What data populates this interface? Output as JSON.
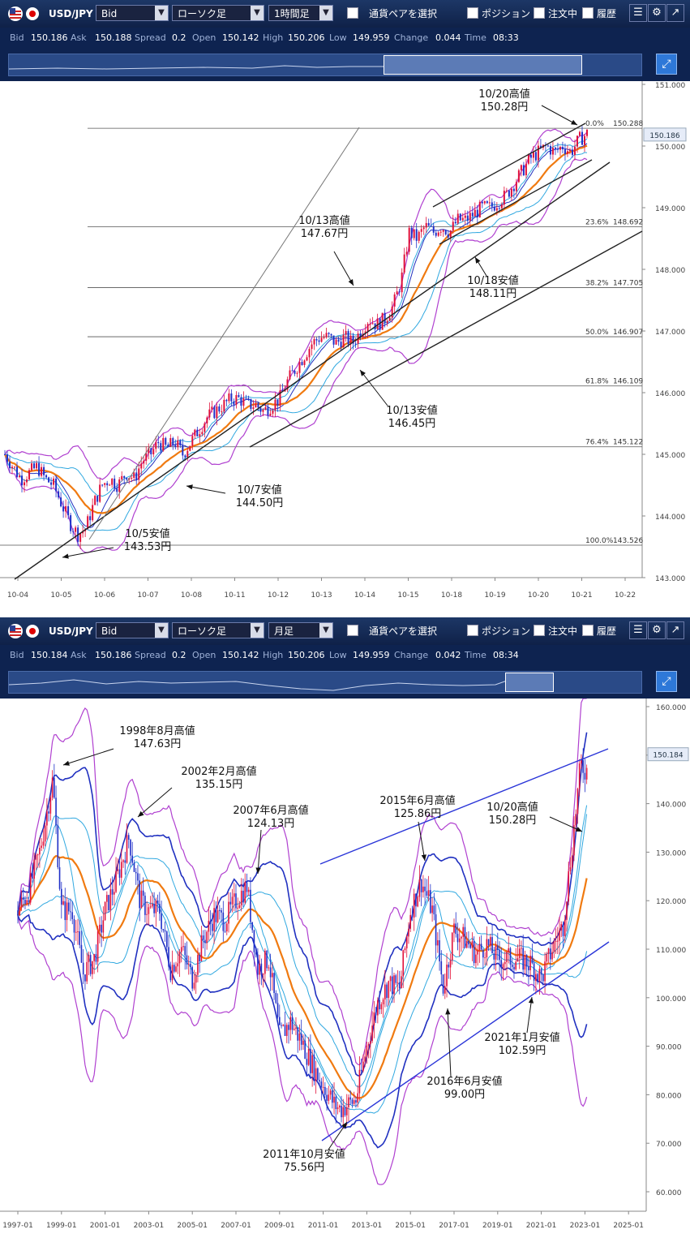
{
  "panels": [
    {
      "toolbar": {
        "flag_icon": "us-flag-icon",
        "pair": "USD/JPY",
        "price_type": "Bid",
        "chart_type": "ローソク足",
        "timeframe": "1時間足",
        "select_pair": "通貨ペアを選択",
        "position": "ポジション",
        "orders": "注文中",
        "history": "履歴"
      },
      "ticker": {
        "bid_label": "Bid",
        "bid": "150.186",
        "ask_label": "Ask",
        "ask": "150.188",
        "spread_label": "Spread",
        "spread": "0.2",
        "open_label": "Open",
        "open": "150.142",
        "high_label": "High",
        "high": "150.206",
        "low_label": "Low",
        "low": "149.959",
        "change_label": "Change",
        "change": "0.044",
        "time_label": "Time",
        "time": "08:33"
      },
      "chart_data": {
        "type": "candlestick",
        "x_labels": [
          "10-04",
          "10-05",
          "10-06",
          "10-07",
          "10-08",
          "10-11",
          "10-12",
          "10-13",
          "10-14",
          "10-15",
          "10-18",
          "10-19",
          "10-20",
          "10-21",
          "10-22"
        ],
        "y_ticks": [
          "151.000",
          "150.000",
          "149.000",
          "148.000",
          "147.000",
          "146.000",
          "145.000",
          "144.000",
          "143.000"
        ],
        "ylim": [
          143.0,
          151.0
        ],
        "current_price": "150.186",
        "approx_close_path": [
          [
            0,
            145.0
          ],
          [
            10,
            144.8
          ],
          [
            20,
            144.6
          ],
          [
            30,
            144.7
          ],
          [
            40,
            144.8
          ],
          [
            50,
            144.6
          ],
          [
            60,
            144.5
          ],
          [
            70,
            144.2
          ],
          [
            80,
            143.9
          ],
          [
            90,
            143.7
          ],
          [
            100,
            143.8
          ],
          [
            110,
            144.2
          ],
          [
            120,
            144.5
          ],
          [
            130,
            144.6
          ],
          [
            140,
            144.5
          ],
          [
            150,
            144.7
          ],
          [
            160,
            144.6
          ],
          [
            170,
            144.9
          ],
          [
            180,
            145.0
          ],
          [
            190,
            145.2
          ],
          [
            200,
            145.1
          ],
          [
            210,
            145.2
          ],
          [
            220,
            145.0
          ],
          [
            230,
            145.2
          ],
          [
            240,
            145.4
          ],
          [
            250,
            145.6
          ],
          [
            260,
            145.7
          ],
          [
            270,
            145.8
          ],
          [
            280,
            145.9
          ],
          [
            290,
            145.9
          ],
          [
            300,
            145.8
          ],
          [
            310,
            145.8
          ],
          [
            320,
            145.7
          ],
          [
            330,
            145.8
          ],
          [
            340,
            145.9
          ],
          [
            350,
            146.2
          ],
          [
            360,
            146.4
          ],
          [
            370,
            146.6
          ],
          [
            380,
            146.8
          ],
          [
            390,
            146.9
          ],
          [
            400,
            146.9
          ],
          [
            410,
            146.8
          ],
          [
            420,
            146.9
          ],
          [
            430,
            146.8
          ],
          [
            440,
            147.0
          ],
          [
            450,
            147.2
          ],
          [
            460,
            147.1
          ],
          [
            470,
            147.2
          ],
          [
            480,
            147.4
          ],
          [
            490,
            147.8
          ],
          [
            500,
            148.6
          ],
          [
            510,
            148.5
          ],
          [
            520,
            148.7
          ],
          [
            530,
            148.6
          ],
          [
            540,
            148.7
          ],
          [
            550,
            148.6
          ],
          [
            560,
            148.8
          ],
          [
            570,
            148.8
          ],
          [
            580,
            148.9
          ],
          [
            590,
            149.0
          ],
          [
            600,
            149.0
          ],
          [
            610,
            149.1
          ],
          [
            620,
            149.2
          ],
          [
            630,
            149.4
          ],
          [
            640,
            149.6
          ],
          [
            650,
            149.8
          ],
          [
            660,
            149.9
          ],
          [
            670,
            150.0
          ],
          [
            680,
            149.9
          ],
          [
            690,
            150.0
          ],
          [
            700,
            149.9
          ],
          [
            710,
            150.1
          ],
          [
            720,
            150.2
          ]
        ],
        "fibonacci": [
          {
            "pct": "0.0%",
            "value": "150.288"
          },
          {
            "pct": "23.6%",
            "value": "148.692"
          },
          {
            "pct": "38.2%",
            "value": "147.705"
          },
          {
            "pct": "50.0%",
            "value": "146.907"
          },
          {
            "pct": "61.8%",
            "value": "146.109"
          },
          {
            "pct": "76.4%",
            "value": "145.122"
          },
          {
            "pct": "100.0%",
            "value": "143.526"
          }
        ],
        "annotations": [
          {
            "line1": "10/20高値",
            "line2": "150.28円"
          },
          {
            "line1": "10/13高値",
            "line2": "147.67円"
          },
          {
            "line1": "10/18安値",
            "line2": "148.11円"
          },
          {
            "line1": "10/13安値",
            "line2": "146.45円"
          },
          {
            "line1": "10/7安値",
            "line2": "144.50円"
          },
          {
            "line1": "10/5安値",
            "line2": "143.53円"
          }
        ]
      }
    },
    {
      "toolbar": {
        "flag_icon": "us-flag-icon",
        "pair": "USD/JPY",
        "price_type": "Bid",
        "chart_type": "ローソク足",
        "timeframe": "月足",
        "select_pair": "通貨ペアを選択",
        "position": "ポジション",
        "orders": "注文中",
        "history": "履歴"
      },
      "ticker": {
        "bid_label": "Bid",
        "bid": "150.184",
        "ask_label": "Ask",
        "ask": "150.186",
        "spread_label": "Spread",
        "spread": "0.2",
        "open_label": "Open",
        "open": "150.142",
        "high_label": "High",
        "high": "150.206",
        "low_label": "Low",
        "low": "149.959",
        "change_label": "Change",
        "change": "0.042",
        "time_label": "Time",
        "time": "08:34"
      },
      "chart_data": {
        "type": "candlestick",
        "x_labels": [
          "1997-01",
          "1999-01",
          "2001-01",
          "2003-01",
          "2005-01",
          "2007-01",
          "2009-01",
          "2011-01",
          "2013-01",
          "2015-01",
          "2017-01",
          "2019-01",
          "2021-01",
          "2023-01",
          "2025-01"
        ],
        "y_ticks": [
          "160.000",
          "150.000",
          "140.000",
          "130.000",
          "120.000",
          "110.000",
          "100.000",
          "90.000",
          "80.000",
          "70.000",
          "60.000"
        ],
        "ylim": [
          60,
          160
        ],
        "current_price": "150.184",
        "approx_close_path": [
          [
            1997.0,
            118
          ],
          [
            1997.5,
            122
          ],
          [
            1998.0,
            130
          ],
          [
            1998.6,
            145
          ],
          [
            1999.0,
            118
          ],
          [
            1999.5,
            118
          ],
          [
            2000.0,
            105
          ],
          [
            2000.5,
            108
          ],
          [
            2001.0,
            118
          ],
          [
            2001.5,
            124
          ],
          [
            2002.1,
            133
          ],
          [
            2002.6,
            120
          ],
          [
            2003.0,
            118
          ],
          [
            2003.5,
            118
          ],
          [
            2004.0,
            106
          ],
          [
            2004.5,
            110
          ],
          [
            2005.0,
            104
          ],
          [
            2005.5,
            112
          ],
          [
            2006.0,
            117
          ],
          [
            2006.5,
            116
          ],
          [
            2007.0,
            120
          ],
          [
            2007.5,
            123
          ],
          [
            2008.0,
            106
          ],
          [
            2008.5,
            108
          ],
          [
            2009.0,
            92
          ],
          [
            2009.5,
            95
          ],
          [
            2010.0,
            91
          ],
          [
            2010.5,
            86
          ],
          [
            2011.0,
            82
          ],
          [
            2011.5,
            78
          ],
          [
            2011.8,
            77
          ],
          [
            2012.5,
            79
          ],
          [
            2013.0,
            90
          ],
          [
            2013.5,
            99
          ],
          [
            2014.0,
            103
          ],
          [
            2014.5,
            102
          ],
          [
            2015.0,
            118
          ],
          [
            2015.5,
            124
          ],
          [
            2016.0,
            118
          ],
          [
            2016.5,
            102
          ],
          [
            2017.0,
            114
          ],
          [
            2017.5,
            112
          ],
          [
            2018.0,
            109
          ],
          [
            2018.5,
            111
          ],
          [
            2019.0,
            108
          ],
          [
            2019.5,
            108
          ],
          [
            2020.0,
            108
          ],
          [
            2020.5,
            107
          ],
          [
            2021.0,
            104
          ],
          [
            2021.5,
            110
          ],
          [
            2022.0,
            115
          ],
          [
            2022.5,
            135
          ],
          [
            2022.8,
            148
          ],
          [
            2023.0,
            147
          ]
        ],
        "annotations": [
          {
            "line1": "1998年8月高値",
            "line2": "147.63円"
          },
          {
            "line1": "2002年2月高値",
            "line2": "135.15円"
          },
          {
            "line1": "2007年6月高値",
            "line2": "124.13円"
          },
          {
            "line1": "2015年6月高値",
            "line2": "125.86円"
          },
          {
            "line1": "10/20高値",
            "line2": "150.28円"
          },
          {
            "line1": "2021年1月安値",
            "line2": "102.59円"
          },
          {
            "line1": "2016年6月安値",
            "line2": "99.00円"
          },
          {
            "line1": "2011年10月安値",
            "line2": "75.56円"
          }
        ]
      }
    }
  ],
  "colors": {
    "toolbar_bg": "#15295a",
    "up_candle": "#e0103a",
    "down_candle": "#1f2fc8",
    "ma_orange": "#f07a10",
    "band_purple": "#b040d0",
    "band_blue": "#2030c0",
    "band_cyan": "#30a8e0",
    "trend_dark": "#222222",
    "trend_blue": "#2a35d8"
  }
}
